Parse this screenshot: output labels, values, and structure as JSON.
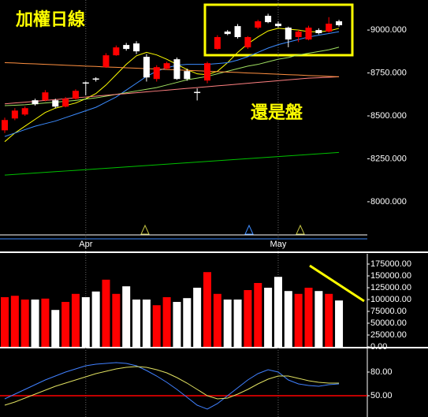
{
  "chart_data": [
    {
      "type": "candlestick",
      "title": "加權日線",
      "annotation": "還是盤",
      "categories": [
        null,
        null,
        null,
        null,
        null,
        null,
        null,
        null,
        "Apr",
        null,
        null,
        null,
        null,
        null,
        null,
        null,
        null,
        null,
        null,
        null,
        null,
        null,
        null,
        null,
        null,
        null,
        null,
        "May",
        null,
        null,
        null,
        null,
        null,
        null
      ],
      "open": [
        8416,
        8485,
        8508,
        8591,
        8591,
        8591,
        8554,
        8600,
        8695,
        8718,
        8784,
        8853,
        8913,
        8922,
        8844,
        8715,
        8775,
        8830,
        8761,
        8640,
        8706,
        8890,
        8991,
        9023,
        8899,
        9014,
        9083,
        9037,
        9014,
        8959,
        8945,
        9000,
        8991,
        9051
      ],
      "high": [
        8490,
        8545,
        8555,
        8600,
        8650,
        8600,
        8610,
        8655,
        8700,
        8725,
        8865,
        8910,
        8925,
        8935,
        8860,
        8795,
        8815,
        8840,
        8775,
        8660,
        8815,
        8970,
        9000,
        9035,
        8965,
        9060,
        9095,
        9050,
        9020,
        9000,
        9025,
        9010,
        9075,
        9060
      ],
      "low": [
        8400,
        8475,
        8500,
        8560,
        8585,
        8545,
        8550,
        8595,
        8620,
        8700,
        8780,
        8850,
        8880,
        8860,
        8700,
        8700,
        8770,
        8710,
        8705,
        8590,
        8690,
        8885,
        8970,
        8950,
        8890,
        9005,
        9040,
        9015,
        8900,
        8930,
        8940,
        8975,
        8985,
        9020
      ],
      "close": [
        8476,
        8531,
        8545,
        8568,
        8637,
        8554,
        8600,
        8646,
        8690,
        8712,
        8853,
        8899,
        8890,
        8876,
        8724,
        8784,
        8807,
        8715,
        8715,
        8635,
        8807,
        8959,
        8977,
        8959,
        8959,
        9051,
        9046,
        9023,
        8945,
        8991,
        9014,
        8982,
        9037,
        9028
      ],
      "up_color": "#ff0000",
      "down_color": "#ffffff",
      "lines": [
        {
          "color": "#ffff00",
          "values": [
            8350,
            8400,
            8440,
            8480,
            8520,
            8545,
            8560,
            8575,
            8600,
            8630,
            8680,
            8740,
            8800,
            8850,
            8870,
            8855,
            8830,
            8800,
            8770,
            8745,
            8740,
            8760,
            8810,
            8870,
            8920,
            8960,
            8995,
            9010,
            9005,
            9000,
            8990,
            8990,
            8995,
            9010
          ]
        },
        {
          "color": "#3c8cff",
          "values": [
            8380,
            8400,
            8420,
            8440,
            8455,
            8470,
            8490,
            8510,
            8530,
            8550,
            8580,
            8610,
            8650,
            8690,
            8730,
            8760,
            8780,
            8795,
            8800,
            8800,
            8800,
            8805,
            8810,
            8825,
            8845,
            8870,
            8895,
            8915,
            8930,
            8945,
            8960,
            8970,
            8980,
            8990
          ]
        },
        {
          "color": "#a0e060",
          "values": [
            8560,
            8562,
            8565,
            8570,
            8575,
            8580,
            8585,
            8590,
            8598,
            8605,
            8615,
            8625,
            8635,
            8645,
            8655,
            8665,
            8680,
            8695,
            8710,
            8720,
            8730,
            8745,
            8760,
            8775,
            8790,
            8800,
            8815,
            8830,
            8840,
            8855,
            8865,
            8875,
            8885,
            8900
          ]
        },
        {
          "color": "#ff8080",
          "values": [
            8570,
            8575,
            8580,
            8585,
            8590,
            8595,
            8600,
            8605,
            8610,
            8615,
            8620,
            8625,
            8630,
            8635,
            8640,
            8645,
            8650,
            8655,
            8660,
            8665,
            8670,
            8675,
            8680,
            8685,
            8690,
            8695,
            8700,
            8705,
            8710,
            8715,
            8720,
            8722,
            8725,
            8728
          ]
        },
        {
          "color": "#ff9040",
          "values": [
            8810,
            8808,
            8805,
            8803,
            8800,
            8798,
            8795,
            8793,
            8790,
            8788,
            8785,
            8783,
            8780,
            8778,
            8775,
            8773,
            8770,
            8768,
            8765,
            8763,
            8760,
            8758,
            8755,
            8753,
            8750,
            8748,
            8745,
            8743,
            8740,
            8738,
            8735,
            8733,
            8730,
            8728
          ]
        },
        {
          "color": "#00c000",
          "values": [
            8155,
            8159,
            8163,
            8167,
            8171,
            8175,
            8179,
            8183,
            8187,
            8191,
            8195,
            8199,
            8203,
            8207,
            8211,
            8215,
            8219,
            8223,
            8227,
            8231,
            8235,
            8239,
            8243,
            8247,
            8251,
            8255,
            8259,
            8263,
            8267,
            8271,
            8275,
            8279,
            8283,
            8287
          ]
        }
      ],
      "ylim": [
        7715,
        9175
      ],
      "yticks": [
        {
          "value": 9000,
          "label": "9000.000"
        },
        {
          "value": 8750,
          "label": "8750.000"
        },
        {
          "value": 8500,
          "label": "8500.000"
        },
        {
          "value": 8250,
          "label": "8250.000"
        },
        {
          "value": 8000,
          "label": "8000.000"
        }
      ]
    },
    {
      "type": "volume",
      "values": [
        105000,
        108000,
        100000,
        100000,
        102000,
        78000,
        95000,
        112000,
        105000,
        117000,
        142000,
        112000,
        128000,
        100000,
        100000,
        88000,
        105000,
        95000,
        103000,
        125000,
        158000,
        112000,
        100000,
        100000,
        120000,
        135000,
        125000,
        148000,
        118000,
        112000,
        125000,
        118000,
        112000,
        98000
      ],
      "ylim": [
        0,
        195000
      ],
      "yticks": [
        {
          "value": 175000,
          "label": "175000.00"
        },
        {
          "value": 150000,
          "label": "150000.00"
        },
        {
          "value": 125000,
          "label": "125000.00"
        },
        {
          "value": 100000,
          "label": "100000.00"
        },
        {
          "value": 75000,
          "label": "75000.00"
        },
        {
          "value": 50000,
          "label": "50000.00"
        },
        {
          "value": 25000,
          "label": "25000.00"
        },
        {
          "value": 0,
          "label": "0.00"
        }
      ]
    },
    {
      "type": "line",
      "series": [
        {
          "color": "#4080ff",
          "values": [
            46,
            52,
            58,
            64,
            70,
            75,
            80,
            84,
            88,
            90,
            91,
            92,
            91,
            88,
            82,
            75,
            67,
            58,
            48,
            38,
            33,
            40,
            50,
            60,
            70,
            78,
            83,
            80,
            70,
            65,
            63,
            62,
            64,
            65
          ]
        },
        {
          "color": "#e0e060",
          "values": [
            38,
            42,
            47,
            52,
            57,
            62,
            66,
            70,
            74,
            78,
            81,
            84,
            86,
            87,
            86,
            83,
            79,
            73,
            66,
            58,
            50,
            46,
            47,
            52,
            58,
            65,
            71,
            75,
            75,
            72,
            69,
            67,
            66,
            66
          ]
        }
      ],
      "hline": 50,
      "hline_color": "#ff0000",
      "ylim": [
        23,
        110
      ],
      "yticks": [
        {
          "value": 80,
          "label": "80.00"
        },
        {
          "value": 50,
          "label": "50.00"
        }
      ]
    }
  ]
}
